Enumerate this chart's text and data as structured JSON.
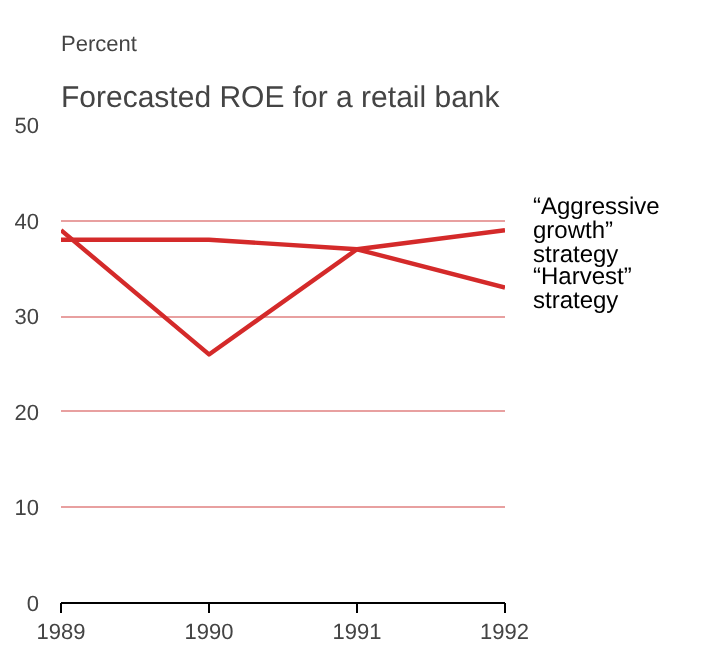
{
  "chart_data": {
    "type": "line",
    "title": "Forecasted ROE for a retail bank",
    "ylabel": "Percent",
    "x": [
      1989,
      1990,
      1991,
      1992
    ],
    "series": [
      {
        "name": "“Aggressive growth” strategy",
        "color": "#d42a2a",
        "values": [
          39,
          26,
          37,
          39
        ]
      },
      {
        "name": "“Harvest” strategy",
        "color": "#d42a2a",
        "values": [
          38,
          38,
          37,
          33
        ]
      }
    ],
    "xlim": [
      1989,
      1992
    ],
    "ylim": [
      0,
      50
    ],
    "xticks": [
      1989,
      1990,
      1991,
      1992
    ],
    "yticks": [
      0,
      10,
      20,
      30,
      40,
      50
    ],
    "grid": "y",
    "marker": "none",
    "line_style": "solid"
  }
}
